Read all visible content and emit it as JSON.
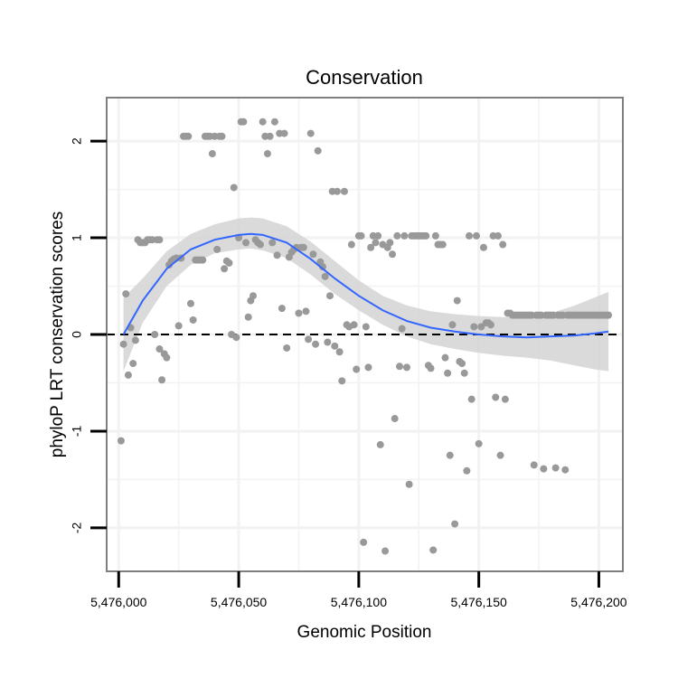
{
  "chart_data": {
    "type": "scatter",
    "title": "Conservation",
    "xlabel": "Genomic Position",
    "ylabel": "phyloP LRT conservation scores",
    "xlim": [
      5475995,
      5476210
    ],
    "ylim": [
      -2.45,
      2.45
    ],
    "x_ticks": [
      5476000,
      5476050,
      5476100,
      5476150,
      5476200
    ],
    "x_tick_labels": [
      "5,476,000",
      "5,476,050",
      "5,476,100",
      "5,476,150",
      "5,476,200"
    ],
    "y_ticks": [
      -2,
      -1,
      0,
      1,
      2
    ],
    "y_tick_labels": [
      "-2",
      "-1",
      "0",
      "1",
      "2"
    ],
    "reference_line": {
      "y": 0,
      "style": "dashed"
    },
    "colors": {
      "points": "#999999",
      "smooth_line": "#3366ff",
      "confidence_band": "#d3d3d3",
      "grid": "#f2f2f2",
      "panel_border": "#7f7f7f",
      "reference_line": "#000000"
    },
    "series": [
      {
        "name": "phyloP LRT score",
        "kind": "points",
        "points": [
          [
            5476001,
            -1.1
          ],
          [
            5476002,
            -0.1
          ],
          [
            5476003,
            0.42
          ],
          [
            5476004,
            -0.42
          ],
          [
            5476005,
            0.07
          ],
          [
            5476006,
            -0.3
          ],
          [
            5476007,
            -0.06
          ],
          [
            5476008,
            0.98
          ],
          [
            5476009,
            0.95
          ],
          [
            5476010,
            0.95
          ],
          [
            5476011,
            0.95
          ],
          [
            5476012,
            0.98
          ],
          [
            5476013,
            0.98
          ],
          [
            5476014,
            0.98
          ],
          [
            5476015,
            0.0
          ],
          [
            5476016,
            0.98
          ],
          [
            5476017,
            0.98
          ],
          [
            5476017,
            -0.15
          ],
          [
            5476018,
            -0.47
          ],
          [
            5476019,
            -0.2
          ],
          [
            5476020,
            -0.24
          ],
          [
            5476021,
            0.72
          ],
          [
            5476022,
            0.76
          ],
          [
            5476023,
            0.78
          ],
          [
            5476024,
            0.79
          ],
          [
            5476025,
            0.09
          ],
          [
            5476026,
            0.79
          ],
          [
            5476027,
            2.05
          ],
          [
            5476028,
            2.05
          ],
          [
            5476029,
            2.05
          ],
          [
            5476030,
            0.32
          ],
          [
            5476031,
            0.15
          ],
          [
            5476032,
            0.77
          ],
          [
            5476033,
            0.77
          ],
          [
            5476034,
            0.77
          ],
          [
            5476035,
            0.77
          ],
          [
            5476036,
            2.05
          ],
          [
            5476037,
            2.05
          ],
          [
            5476038,
            2.05
          ],
          [
            5476039,
            1.87
          ],
          [
            5476040,
            2.05
          ],
          [
            5476041,
            0.88
          ],
          [
            5476042,
            2.05
          ],
          [
            5476043,
            2.05
          ],
          [
            5476044,
            0.68
          ],
          [
            5476045,
            0.76
          ],
          [
            5476046,
            0.74
          ],
          [
            5476047,
            0.0
          ],
          [
            5476048,
            1.52
          ],
          [
            5476049,
            -0.03
          ],
          [
            5476050,
            1.0
          ],
          [
            5476051,
            2.2
          ],
          [
            5476052,
            2.2
          ],
          [
            5476053,
            0.95
          ],
          [
            5476054,
            0.18
          ],
          [
            5476055,
            0.35
          ],
          [
            5476056,
            0.4
          ],
          [
            5476057,
            0.98
          ],
          [
            5476058,
            0.95
          ],
          [
            5476059,
            0.93
          ],
          [
            5476060,
            2.2
          ],
          [
            5476061,
            2.05
          ],
          [
            5476062,
            1.87
          ],
          [
            5476063,
            2.05
          ],
          [
            5476064,
            0.95
          ],
          [
            5476065,
            2.2
          ],
          [
            5476066,
            0.82
          ],
          [
            5476067,
            2.08
          ],
          [
            5476068,
            0.27
          ],
          [
            5476069,
            2.08
          ],
          [
            5476070,
            -0.14
          ],
          [
            5476071,
            0.8
          ],
          [
            5476072,
            0.85
          ],
          [
            5476073,
            0.88
          ],
          [
            5476074,
            0.9
          ],
          [
            5476075,
            0.22
          ],
          [
            5476076,
            0.9
          ],
          [
            5476077,
            0.9
          ],
          [
            5476078,
            0.24
          ],
          [
            5476079,
            -0.05
          ],
          [
            5476080,
            2.08
          ],
          [
            5476081,
            0.83
          ],
          [
            5476082,
            -0.1
          ],
          [
            5476083,
            1.9
          ],
          [
            5476084,
            0.75
          ],
          [
            5476085,
            0.7
          ],
          [
            5476086,
            0.6
          ],
          [
            5476087,
            -0.08
          ],
          [
            5476088,
            0.4
          ],
          [
            5476089,
            1.48
          ],
          [
            5476090,
            -0.12
          ],
          [
            5476091,
            1.48
          ],
          [
            5476092,
            -0.18
          ],
          [
            5476093,
            -0.48
          ],
          [
            5476094,
            1.48
          ],
          [
            5476095,
            0.1
          ],
          [
            5476096,
            0.08
          ],
          [
            5476097,
            0.93
          ],
          [
            5476098,
            0.1
          ],
          [
            5476099,
            -0.36
          ],
          [
            5476100,
            1.02
          ],
          [
            5476101,
            1.02
          ],
          [
            5476102,
            -2.15
          ],
          [
            5476103,
            0.08
          ],
          [
            5476104,
            -0.34
          ],
          [
            5476105,
            0.9
          ],
          [
            5476106,
            1.02
          ],
          [
            5476107,
            0.95
          ],
          [
            5476108,
            1.02
          ],
          [
            5476109,
            -1.14
          ],
          [
            5476110,
            0.93
          ],
          [
            5476111,
            -2.24
          ],
          [
            5476112,
            0.9
          ],
          [
            5476113,
            0.95
          ],
          [
            5476114,
            0.83
          ],
          [
            5476115,
            -0.87
          ],
          [
            5476116,
            1.02
          ],
          [
            5476117,
            -0.33
          ],
          [
            5476118,
            0.06
          ],
          [
            5476119,
            1.02
          ],
          [
            5476120,
            -0.34
          ],
          [
            5476121,
            -1.55
          ],
          [
            5476122,
            1.02
          ],
          [
            5476123,
            1.02
          ],
          [
            5476124,
            1.02
          ],
          [
            5476125,
            1.02
          ],
          [
            5476126,
            1.02
          ],
          [
            5476127,
            1.02
          ],
          [
            5476128,
            1.02
          ],
          [
            5476129,
            -0.32
          ],
          [
            5476130,
            -0.35
          ],
          [
            5476131,
            -2.23
          ],
          [
            5476132,
            1.02
          ],
          [
            5476133,
            0.93
          ],
          [
            5476134,
            0.93
          ],
          [
            5476135,
            0.93
          ],
          [
            5476136,
            -0.24
          ],
          [
            5476137,
            -0.4
          ],
          [
            5476138,
            -1.25
          ],
          [
            5476139,
            0.1
          ],
          [
            5476140,
            -1.96
          ],
          [
            5476141,
            0.35
          ],
          [
            5476142,
            -0.28
          ],
          [
            5476143,
            -0.3
          ],
          [
            5476144,
            -0.4
          ],
          [
            5476145,
            -1.41
          ],
          [
            5476146,
            1.02
          ],
          [
            5476147,
            -0.67
          ],
          [
            5476148,
            0.08
          ],
          [
            5476149,
            1.02
          ],
          [
            5476150,
            -1.13
          ],
          [
            5476151,
            0.08
          ],
          [
            5476152,
            0.9
          ],
          [
            5476153,
            0.12
          ],
          [
            5476154,
            0.12
          ],
          [
            5476155,
            0.1
          ],
          [
            5476156,
            1.02
          ],
          [
            5476157,
            -0.65
          ],
          [
            5476158,
            1.02
          ],
          [
            5476159,
            -1.25
          ],
          [
            5476160,
            0.93
          ],
          [
            5476161,
            -0.67
          ],
          [
            5476162,
            0.22
          ],
          [
            5476163,
            0.22
          ],
          [
            5476164,
            0.2
          ],
          [
            5476165,
            0.2
          ],
          [
            5476166,
            0.2
          ],
          [
            5476167,
            0.2
          ],
          [
            5476168,
            0.2
          ],
          [
            5476169,
            0.2
          ],
          [
            5476170,
            0.2
          ],
          [
            5476171,
            0.2
          ],
          [
            5476172,
            0.2
          ],
          [
            5476173,
            -1.35
          ],
          [
            5476174,
            0.2
          ],
          [
            5476175,
            0.2
          ],
          [
            5476176,
            0.2
          ],
          [
            5476177,
            -1.39
          ],
          [
            5476178,
            0.2
          ],
          [
            5476179,
            0.2
          ],
          [
            5476180,
            0.2
          ],
          [
            5476181,
            0.2
          ],
          [
            5476182,
            -1.38
          ],
          [
            5476183,
            0.2
          ],
          [
            5476184,
            0.2
          ],
          [
            5476185,
            0.2
          ],
          [
            5476186,
            -1.4
          ],
          [
            5476187,
            0.2
          ],
          [
            5476188,
            0.2
          ],
          [
            5476189,
            0.2
          ],
          [
            5476190,
            0.2
          ],
          [
            5476191,
            0.2
          ],
          [
            5476192,
            0.2
          ],
          [
            5476193,
            0.2
          ],
          [
            5476194,
            0.2
          ],
          [
            5476195,
            0.2
          ],
          [
            5476196,
            0.2
          ],
          [
            5476197,
            0.2
          ],
          [
            5476198,
            0.2
          ],
          [
            5476199,
            0.2
          ],
          [
            5476200,
            0.2
          ],
          [
            5476201,
            0.2
          ],
          [
            5476202,
            0.2
          ],
          [
            5476203,
            0.2
          ],
          [
            5476204,
            0.2
          ]
        ]
      },
      {
        "name": "loess smooth",
        "kind": "line",
        "points": [
          [
            5476002,
            0.0
          ],
          [
            5476010,
            0.35
          ],
          [
            5476020,
            0.68
          ],
          [
            5476030,
            0.88
          ],
          [
            5476040,
            0.98
          ],
          [
            5476050,
            1.03
          ],
          [
            5476055,
            1.04
          ],
          [
            5476060,
            1.03
          ],
          [
            5476070,
            0.95
          ],
          [
            5476080,
            0.78
          ],
          [
            5476090,
            0.58
          ],
          [
            5476100,
            0.4
          ],
          [
            5476110,
            0.25
          ],
          [
            5476120,
            0.14
          ],
          [
            5476130,
            0.07
          ],
          [
            5476140,
            0.03
          ],
          [
            5476150,
            0.0
          ],
          [
            5476160,
            -0.02
          ],
          [
            5476170,
            -0.03
          ],
          [
            5476180,
            -0.02
          ],
          [
            5476190,
            -0.01
          ],
          [
            5476198,
            0.01
          ],
          [
            5476204,
            0.03
          ]
        ]
      },
      {
        "name": "95% confidence band",
        "kind": "ribbon",
        "points": [
          [
            5476002,
            -0.38,
            0.38
          ],
          [
            5476010,
            0.12,
            0.58
          ],
          [
            5476020,
            0.5,
            0.86
          ],
          [
            5476030,
            0.72,
            1.04
          ],
          [
            5476040,
            0.84,
            1.14
          ],
          [
            5476050,
            0.88,
            1.2
          ],
          [
            5476055,
            0.89,
            1.21
          ],
          [
            5476060,
            0.87,
            1.2
          ],
          [
            5476070,
            0.79,
            1.12
          ],
          [
            5476080,
            0.62,
            0.96
          ],
          [
            5476090,
            0.42,
            0.76
          ],
          [
            5476100,
            0.25,
            0.56
          ],
          [
            5476110,
            0.1,
            0.4
          ],
          [
            5476120,
            -0.02,
            0.3
          ],
          [
            5476130,
            -0.1,
            0.24
          ],
          [
            5476140,
            -0.15,
            0.21
          ],
          [
            5476150,
            -0.19,
            0.19
          ],
          [
            5476160,
            -0.22,
            0.18
          ],
          [
            5476170,
            -0.24,
            0.18
          ],
          [
            5476180,
            -0.27,
            0.22
          ],
          [
            5476190,
            -0.32,
            0.3
          ],
          [
            5476198,
            -0.36,
            0.38
          ],
          [
            5476204,
            -0.38,
            0.44
          ]
        ]
      }
    ]
  }
}
